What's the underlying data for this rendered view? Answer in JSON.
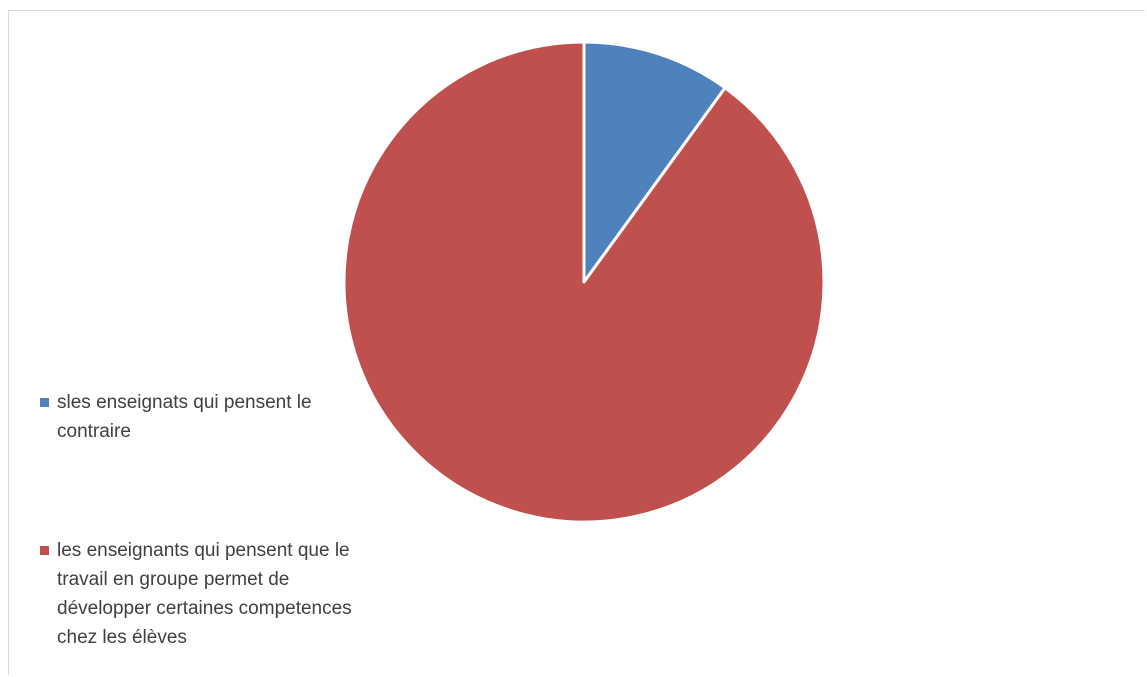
{
  "chart_data": {
    "type": "pie",
    "slices": [
      {
        "label": "sles enseignats qui pensent le contraire",
        "value": 10,
        "color": "#4F81BD"
      },
      {
        "label": "les enseignants qui pensent que le travail en groupe permet de développer certaines competences chez les élèves",
        "value": 90,
        "color": "#C0504D"
      }
    ],
    "legend_position": "left",
    "start_angle": "12 o'clock",
    "direction": "clockwise"
  }
}
